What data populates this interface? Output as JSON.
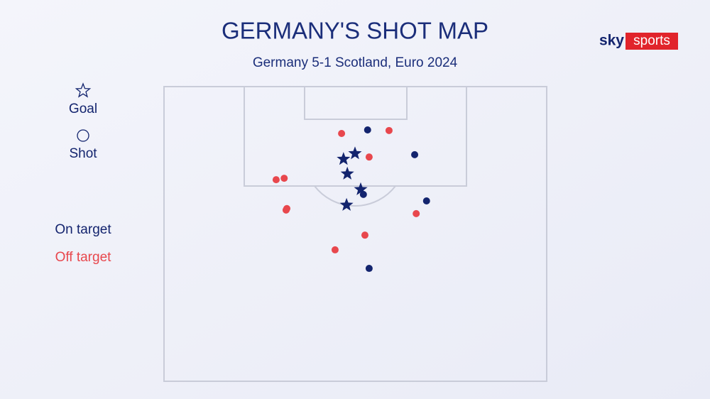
{
  "chart_data": {
    "type": "scatter",
    "title": "GERMANY'S SHOT MAP",
    "subtitle": "Germany 5-1 Scotland, Euro 2024",
    "logo": {
      "left": "sky",
      "right": "sports"
    },
    "xlim": [
      0,
      100
    ],
    "ylim": [
      0,
      100
    ],
    "markers": [
      {
        "name": "Goal",
        "shape": "star"
      },
      {
        "name": "Shot",
        "shape": "circle"
      }
    ],
    "outcomes": [
      {
        "name": "On target",
        "color": "#13246e"
      },
      {
        "name": "Off target",
        "color": "#e8474d"
      }
    ],
    "series": [
      {
        "marker": "star",
        "color": "#13246e",
        "x": [
          46.9,
          49.9,
          47.9,
          51.4,
          47.7
        ],
        "y": [
          24.6,
          22.7,
          29.6,
          34.9,
          40.2
        ]
      },
      {
        "marker": "circle",
        "color": "#13246e",
        "x": [
          53.2,
          65.5,
          52.1,
          68.6,
          53.6
        ],
        "y": [
          14.7,
          23.1,
          36.6,
          38.8,
          61.7
        ]
      },
      {
        "marker": "circle",
        "color": "#e8474d",
        "x": [
          46.4,
          58.8,
          53.6,
          29.3,
          31.4,
          32.1,
          31.9,
          65.9,
          52.5,
          44.7
        ],
        "y": [
          15.9,
          14.9,
          23.9,
          31.6,
          31.1,
          41.4,
          41.9,
          43.1,
          50.4,
          55.4
        ]
      }
    ]
  }
}
